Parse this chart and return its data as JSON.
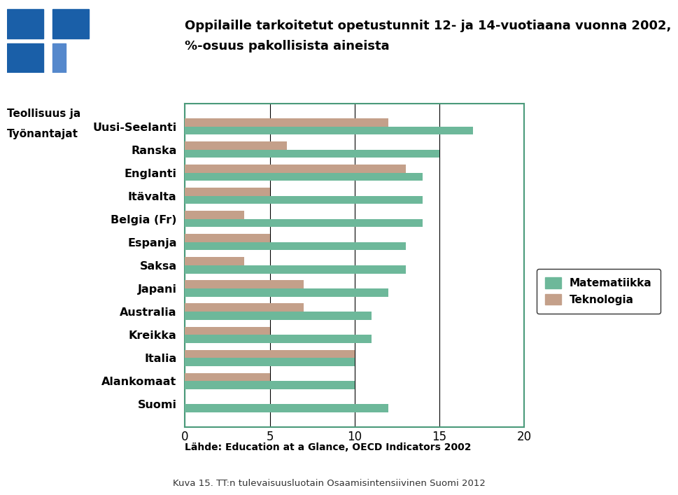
{
  "categories": [
    "Uusi-Seelanti",
    "Ranska",
    "Englanti",
    "Itävalta",
    "Belgia (Fr)",
    "Espanja",
    "Saksa",
    "Japani",
    "Australia",
    "Kreikka",
    "Italia",
    "Alankomaat",
    "Suomi"
  ],
  "math_values": [
    17,
    15,
    14,
    14,
    14,
    13,
    13,
    12,
    11,
    11,
    10,
    10,
    12
  ],
  "tech_values": [
    12,
    6,
    13,
    5,
    3.5,
    5,
    3.5,
    7,
    7,
    5,
    10,
    5,
    0
  ],
  "math_color": "#6db89a",
  "tech_color": "#c4a08a",
  "title_line1": "Oppilaille tarkoitetut opetustunnit 12- ja 14-vuotiaana vuonna 2002,",
  "title_line2": "%-osuus pakollisista aineista",
  "legend_math": "Matematiikka",
  "legend_tech": "Teknologia",
  "source": "Lähde: Education at a Glance, OECD Indicators 2002",
  "footer": "Kuva 15. TT:n tulevaisuusluotain Osaamisintensiivinen Suomi 2012",
  "xlim": [
    0,
    20
  ],
  "xticks": [
    0,
    5,
    10,
    15,
    20
  ],
  "org_line1": "Teollisuus ja",
  "org_line2": "Työnantajat",
  "bar_height": 0.35,
  "background_color": "#ffffff",
  "chart_bg": "#ffffff",
  "border_color": "#4a9a7a"
}
